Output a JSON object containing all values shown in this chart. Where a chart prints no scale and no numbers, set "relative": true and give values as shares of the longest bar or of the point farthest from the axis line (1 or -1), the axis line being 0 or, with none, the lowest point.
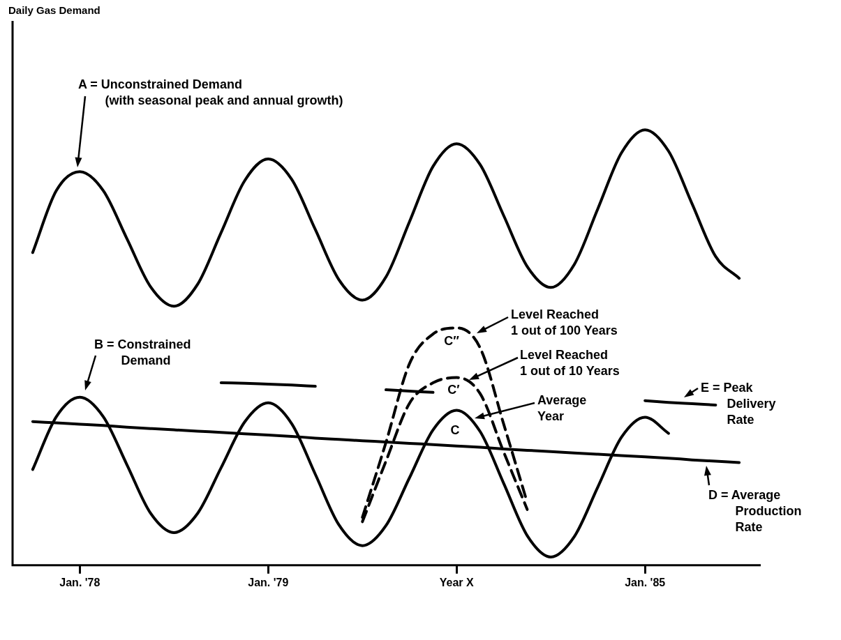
{
  "chart_data": {
    "type": "line",
    "relative": true,
    "title": "Daily Gas Demand",
    "tick_labels": "x",
    "marker": "none",
    "categories": [
      null,
      null,
      "Jan. '78",
      null,
      null,
      null,
      null,
      null,
      null,
      null,
      "Jan. '79",
      null,
      null,
      null,
      null,
      null,
      null,
      null,
      "Year X",
      null,
      null,
      null,
      null,
      null,
      null,
      null,
      "Jan. '85",
      null,
      null,
      null,
      null
    ],
    "series": [
      {
        "color": "#000000",
        "line_style": "solid",
        "values": [
          0.718,
          0.86,
          0.904,
          0.86,
          0.75,
          0.64,
          0.595,
          0.645,
          0.764,
          0.883,
          0.933,
          0.886,
          0.771,
          0.656,
          0.609,
          0.662,
          0.789,
          0.916,
          0.968,
          0.92,
          0.803,
          0.686,
          0.638,
          0.691,
          0.819,
          0.947,
          1.0,
          0.951,
          0.83,
          0.709,
          0.659
        ]
      },
      {
        "color": "#000000",
        "line_style": "solid",
        "values": [
          0.22,
          0.341,
          0.386,
          0.341,
          0.231,
          0.12,
          0.075,
          0.119,
          0.224,
          0.329,
          0.373,
          0.325,
          0.209,
          0.093,
          0.045,
          0.091,
          0.201,
          0.311,
          0.356,
          0.307,
          0.188,
          0.068,
          0.019,
          0.066,
          0.18,
          0.294,
          0.34,
          0.303,
          null,
          null,
          null
        ]
      },
      {
        "color": "#000000",
        "line_style": "solid",
        "values": [
          0.33,
          0.327,
          0.324,
          0.321,
          0.317,
          0.314,
          0.311,
          0.308,
          0.305,
          0.302,
          0.299,
          0.296,
          0.292,
          0.289,
          0.286,
          0.283,
          0.28,
          0.277,
          0.274,
          0.271,
          0.267,
          0.264,
          0.261,
          0.258,
          0.255,
          0.252,
          0.249,
          0.246,
          0.242,
          0.239,
          0.236
        ]
      },
      {
        "color": "#000000",
        "line_style": "dashed",
        "values": [
          null,
          null,
          null,
          null,
          null,
          null,
          null,
          null,
          null,
          null,
          null,
          null,
          null,
          null,
          0.11,
          0.282,
          0.463,
          0.531,
          0.545,
          0.499,
          0.324,
          0.144,
          null,
          null,
          null,
          null,
          null,
          null,
          null,
          null,
          null
        ]
      },
      {
        "color": "#000000",
        "line_style": "dashed",
        "values": [
          null,
          null,
          null,
          null,
          null,
          null,
          null,
          null,
          null,
          null,
          null,
          null,
          null,
          null,
          0.1,
          0.239,
          0.372,
          0.419,
          0.431,
          0.394,
          0.26,
          0.128,
          null,
          null,
          null,
          null,
          null,
          null,
          null,
          null,
          null
        ]
      },
      {
        "color": "#000000",
        "line_style": "solid",
        "values": [
          null,
          null,
          null,
          null,
          null,
          null,
          null,
          null,
          0.419,
          0.418,
          0.416,
          0.414,
          0.411,
          null,
          null,
          0.403,
          0.4,
          0.397,
          null,
          null,
          null,
          null,
          null,
          null,
          null,
          null,
          0.378,
          0.374,
          0.371,
          0.368,
          null
        ]
      }
    ],
    "annotations": [
      "A = Unconstrained Demand\n(with seasonal peak and annual growth)",
      "B = Constrained\nDemand",
      "Level Reached\n1 out of 100 Years",
      "C″",
      "Level Reached\n1 out of 10 Years",
      "C′",
      "Average\nYear",
      "C",
      "E = Peak\nDelivery\nRate",
      "D = Average\nProduction\nRate"
    ]
  }
}
